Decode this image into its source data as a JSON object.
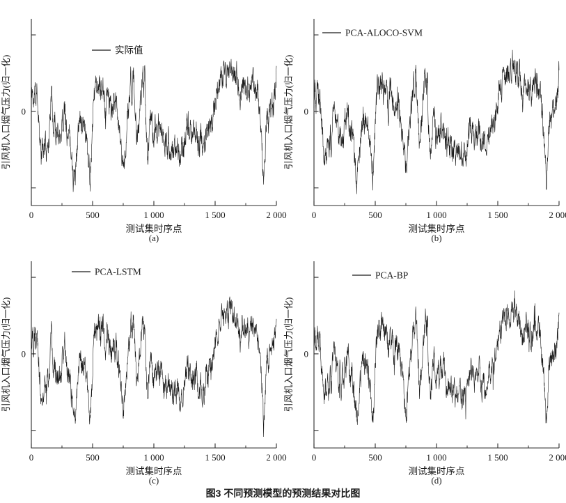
{
  "figure": {
    "caption": "图3  不同预测模型的预测结果对比图"
  },
  "chart_data": {
    "type": "line",
    "title": "",
    "xlabel": "测试集时序点",
    "ylabel": "引风机入口烟气压力(归一化)",
    "xlim": [
      0,
      2000
    ],
    "ylim": [
      -1.23,
      1.21
    ],
    "x_major_ticks": [
      0,
      500,
      1000,
      1500,
      2000
    ],
    "x_tick_labels": [
      "0",
      "500",
      "1 000",
      "1 500",
      "2 000"
    ],
    "x_minor_ticks": [
      250,
      750,
      1250,
      1750
    ],
    "y_major_ticks": [
      1,
      0,
      -1
    ],
    "y_tick_labels": [
      "",
      "0",
      ""
    ],
    "grid": false,
    "legend_position": "upper-left-inside",
    "line_color": "#1a1a1a",
    "axis_color": "#2b2b2b",
    "subplots": [
      {
        "letter": "(a)",
        "legend": "实际值",
        "seed": 11,
        "legend_pos": [
          132,
          72
        ]
      },
      {
        "letter": "(b)",
        "legend": "PCA-ALOCO-SVM",
        "seed": 23,
        "legend_pos": [
          57,
          47
        ]
      },
      {
        "letter": "(c)",
        "legend": "PCA-LSTM",
        "seed": 37,
        "legend_pos": [
          103,
          42
        ]
      },
      {
        "letter": "(d)",
        "legend": "PCA-BP",
        "seed": 51,
        "legend_pos": [
          100,
          47
        ]
      }
    ],
    "points": 1300,
    "noise_amplitude": 0.13,
    "noise_persistence": 0.5,
    "series_anchors": [
      [
        0,
        0.15
      ],
      [
        8,
        0.3
      ],
      [
        18,
        0.05
      ],
      [
        28,
        0.3
      ],
      [
        38,
        0.15
      ],
      [
        48,
        0.28
      ],
      [
        58,
        -0.05
      ],
      [
        70,
        -0.3
      ],
      [
        80,
        -0.62
      ],
      [
        92,
        -0.45
      ],
      [
        102,
        -0.6
      ],
      [
        112,
        -0.35
      ],
      [
        122,
        -0.55
      ],
      [
        132,
        -0.3
      ],
      [
        142,
        -0.45
      ],
      [
        152,
        -0.1
      ],
      [
        162,
        0.25
      ],
      [
        172,
        0.05
      ],
      [
        182,
        -0.2
      ],
      [
        192,
        -0.1
      ],
      [
        202,
        -0.35
      ],
      [
        212,
        -0.2
      ],
      [
        222,
        -0.42
      ],
      [
        232,
        -0.25
      ],
      [
        242,
        -0.35
      ],
      [
        252,
        -0.05
      ],
      [
        262,
        -0.2
      ],
      [
        272,
        0.1
      ],
      [
        282,
        -0.05
      ],
      [
        292,
        -0.3
      ],
      [
        302,
        -0.38
      ],
      [
        312,
        -0.25
      ],
      [
        322,
        -0.45
      ],
      [
        332,
        -0.6
      ],
      [
        342,
        -0.78
      ],
      [
        352,
        -0.92
      ],
      [
        362,
        -0.75
      ],
      [
        372,
        -0.5
      ],
      [
        382,
        -0.3
      ],
      [
        392,
        -0.15
      ],
      [
        402,
        -0.05
      ],
      [
        412,
        -0.18
      ],
      [
        422,
        -0.08
      ],
      [
        432,
        -0.15
      ],
      [
        442,
        -0.25
      ],
      [
        452,
        -0.35
      ],
      [
        462,
        -0.55
      ],
      [
        472,
        -0.75
      ],
      [
        480,
        -0.9
      ],
      [
        488,
        -0.65
      ],
      [
        496,
        -0.35
      ],
      [
        506,
        0.05
      ],
      [
        516,
        0.28
      ],
      [
        526,
        0.35
      ],
      [
        536,
        0.22
      ],
      [
        546,
        0.32
      ],
      [
        556,
        0.38
      ],
      [
        566,
        0.22
      ],
      [
        576,
        0.3
      ],
      [
        586,
        0.35
      ],
      [
        596,
        0.28
      ],
      [
        606,
        -0.1
      ],
      [
        612,
        0.05
      ],
      [
        618,
        0.3
      ],
      [
        626,
        0.32
      ],
      [
        634,
        0.1
      ],
      [
        642,
        0.2
      ],
      [
        652,
        -0.02
      ],
      [
        662,
        0.08
      ],
      [
        672,
        0.12
      ],
      [
        682,
        0.0
      ],
      [
        692,
        0.1
      ],
      [
        702,
        -0.05
      ],
      [
        712,
        -0.18
      ],
      [
        722,
        -0.3
      ],
      [
        732,
        -0.45
      ],
      [
        742,
        -0.6
      ],
      [
        752,
        -0.78
      ],
      [
        762,
        -0.6
      ],
      [
        772,
        -0.38
      ],
      [
        782,
        -0.18
      ],
      [
        792,
        0.0
      ],
      [
        802,
        0.15
      ],
      [
        812,
        0.45
      ],
      [
        822,
        0.25
      ],
      [
        830,
        0.48
      ],
      [
        840,
        0.3
      ],
      [
        850,
        -0.1
      ],
      [
        860,
        -0.45
      ],
      [
        870,
        -0.3
      ],
      [
        880,
        -0.15
      ],
      [
        890,
        0.1
      ],
      [
        900,
        0.3
      ],
      [
        910,
        0.5
      ],
      [
        918,
        0.28
      ],
      [
        926,
        0.45
      ],
      [
        934,
        -0.1
      ],
      [
        942,
        -0.4
      ],
      [
        950,
        -0.58
      ],
      [
        960,
        -0.35
      ],
      [
        970,
        -0.12
      ],
      [
        980,
        -0.05
      ],
      [
        990,
        -0.25
      ],
      [
        1000,
        -0.42
      ],
      [
        1012,
        -0.2
      ],
      [
        1024,
        -0.38
      ],
      [
        1036,
        -0.15
      ],
      [
        1048,
        -0.3
      ],
      [
        1060,
        -0.12
      ],
      [
        1072,
        -0.32
      ],
      [
        1084,
        -0.5
      ],
      [
        1096,
        -0.35
      ],
      [
        1108,
        -0.52
      ],
      [
        1120,
        -0.38
      ],
      [
        1132,
        -0.55
      ],
      [
        1144,
        -0.42
      ],
      [
        1156,
        -0.6
      ],
      [
        1168,
        -0.45
      ],
      [
        1180,
        -0.55
      ],
      [
        1192,
        -0.38
      ],
      [
        1204,
        -0.52
      ],
      [
        1216,
        -0.62
      ],
      [
        1228,
        -0.45
      ],
      [
        1240,
        -0.58
      ],
      [
        1252,
        -0.35
      ],
      [
        1264,
        -0.25
      ],
      [
        1276,
        -0.12
      ],
      [
        1288,
        -0.3
      ],
      [
        1300,
        -0.18
      ],
      [
        1312,
        -0.4
      ],
      [
        1324,
        -0.25
      ],
      [
        1336,
        -0.32
      ],
      [
        1348,
        -0.2
      ],
      [
        1360,
        -0.42
      ],
      [
        1372,
        -0.5
      ],
      [
        1384,
        -0.3
      ],
      [
        1396,
        -0.45
      ],
      [
        1408,
        -0.55
      ],
      [
        1420,
        -0.35
      ],
      [
        1432,
        -0.22
      ],
      [
        1444,
        -0.32
      ],
      [
        1456,
        -0.12
      ],
      [
        1468,
        -0.25
      ],
      [
        1480,
        -0.05
      ],
      [
        1492,
        0.05
      ],
      [
        1504,
        0.18
      ],
      [
        1516,
        0.32
      ],
      [
        1528,
        0.22
      ],
      [
        1540,
        0.4
      ],
      [
        1552,
        0.5
      ],
      [
        1564,
        0.42
      ],
      [
        1576,
        0.55
      ],
      [
        1588,
        0.45
      ],
      [
        1600,
        0.55
      ],
      [
        1612,
        0.48
      ],
      [
        1620,
        0.72
      ],
      [
        1628,
        0.52
      ],
      [
        1636,
        0.62
      ],
      [
        1646,
        0.4
      ],
      [
        1656,
        0.5
      ],
      [
        1666,
        0.42
      ],
      [
        1676,
        0.52
      ],
      [
        1686,
        0.35
      ],
      [
        1696,
        0.28
      ],
      [
        1706,
        0.12
      ],
      [
        1716,
        0.3
      ],
      [
        1726,
        0.42
      ],
      [
        1736,
        0.3
      ],
      [
        1746,
        0.38
      ],
      [
        1756,
        0.22
      ],
      [
        1766,
        0.32
      ],
      [
        1776,
        0.18
      ],
      [
        1786,
        0.3
      ],
      [
        1796,
        0.38
      ],
      [
        1806,
        0.42
      ],
      [
        1816,
        0.3
      ],
      [
        1826,
        0.38
      ],
      [
        1836,
        0.22
      ],
      [
        1846,
        0.3
      ],
      [
        1856,
        0.1
      ],
      [
        1866,
        -0.08
      ],
      [
        1876,
        -0.3
      ],
      [
        1886,
        -0.6
      ],
      [
        1896,
        -0.95
      ],
      [
        1906,
        -0.6
      ],
      [
        1916,
        -0.25
      ],
      [
        1926,
        0.0
      ],
      [
        1936,
        -0.15
      ],
      [
        1946,
        0.08
      ],
      [
        1956,
        -0.08
      ],
      [
        1966,
        0.15
      ],
      [
        1976,
        0.05
      ],
      [
        1986,
        0.22
      ],
      [
        1996,
        0.38
      ],
      [
        2000,
        0.55
      ]
    ]
  }
}
